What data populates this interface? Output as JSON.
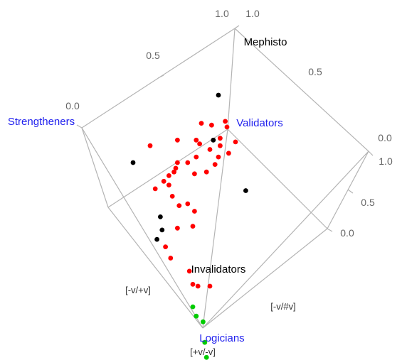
{
  "chart_data": {
    "type": "scatter",
    "ticks": {
      "top": [
        "0.0",
        "0.5",
        "1.0"
      ],
      "right": [
        "0.0",
        "0.5",
        "1.0"
      ],
      "inner_right": "0.0",
      "top_outer": "1.0"
    },
    "vertex_labels": {
      "left": "Strengtheners",
      "center": "Validators",
      "bottom": "Logicians",
      "upper": "Mephisto",
      "lower": "Invalidators"
    },
    "axis_signs": {
      "left": "[-v/+v]",
      "right": "[-v/#v]",
      "bottom": "[+v/-v]"
    },
    "colors": {
      "red": "#ff0000",
      "black": "#000000",
      "green": "#00cc00",
      "label_blue": "#2222ee",
      "frame": "#b4b4b4"
    },
    "points": [
      {
        "u": 0.8,
        "v": 0.11,
        "group": "black"
      },
      {
        "u": 0.84,
        "v": 0.25,
        "group": "red"
      },
      {
        "u": 0.85,
        "v": 0.28,
        "group": "red"
      },
      {
        "u": 0.76,
        "v": 0.27,
        "group": "red"
      },
      {
        "u": 0.7,
        "v": 0.26,
        "group": "red"
      },
      {
        "u": 0.67,
        "v": 0.35,
        "group": "red"
      },
      {
        "u": 0.81,
        "v": 0.34,
        "group": "red"
      },
      {
        "u": 0.77,
        "v": 0.35,
        "group": "black"
      },
      {
        "u": 0.81,
        "v": 0.38,
        "group": "red"
      },
      {
        "u": 0.9,
        "v": 0.36,
        "group": "red"
      },
      {
        "u": 0.56,
        "v": 0.35,
        "group": "red"
      },
      {
        "u": 0.69,
        "v": 0.37,
        "group": "red"
      },
      {
        "u": 0.75,
        "v": 0.4,
        "group": "red"
      },
      {
        "u": 0.67,
        "v": 0.44,
        "group": "red"
      },
      {
        "u": 0.8,
        "v": 0.44,
        "group": "red"
      },
      {
        "u": 0.78,
        "v": 0.48,
        "group": "red"
      },
      {
        "u": 0.86,
        "v": 0.42,
        "group": "red"
      },
      {
        "u": 0.4,
        "v": 0.38,
        "group": "red"
      },
      {
        "u": 0.66,
        "v": 0.53,
        "group": "red"
      },
      {
        "u": 0.73,
        "v": 0.52,
        "group": "red"
      },
      {
        "u": 0.62,
        "v": 0.47,
        "group": "red"
      },
      {
        "u": 0.56,
        "v": 0.47,
        "group": "red"
      },
      {
        "u": 0.55,
        "v": 0.5,
        "group": "red"
      },
      {
        "u": 0.54,
        "v": 0.52,
        "group": "red"
      },
      {
        "u": 0.51,
        "v": 0.54,
        "group": "red"
      },
      {
        "u": 0.48,
        "v": 0.57,
        "group": "red"
      },
      {
        "u": 0.43,
        "v": 0.61,
        "group": "red"
      },
      {
        "u": 0.3,
        "v": 0.47,
        "group": "black"
      },
      {
        "u": 0.96,
        "v": 0.62,
        "group": "black"
      },
      {
        "u": 0.51,
        "v": 0.59,
        "group": "red"
      },
      {
        "u": 0.53,
        "v": 0.65,
        "group": "red"
      },
      {
        "u": 0.62,
        "v": 0.69,
        "group": "red"
      },
      {
        "u": 0.66,
        "v": 0.73,
        "group": "red"
      },
      {
        "u": 0.57,
        "v": 0.7,
        "group": "red"
      },
      {
        "u": 0.65,
        "v": 0.81,
        "group": "red"
      },
      {
        "u": 0.56,
        "v": 0.82,
        "group": "red"
      },
      {
        "u": 0.46,
        "v": 0.76,
        "group": "black"
      },
      {
        "u": 0.47,
        "v": 0.83,
        "group": "black"
      },
      {
        "u": 0.49,
        "v": 0.92,
        "group": "red"
      },
      {
        "u": 0.44,
        "v": 0.88,
        "group": "black"
      },
      {
        "u": 0.52,
        "v": 0.98,
        "group": "red"
      },
      {
        "u": 0.63,
        "v": 1.05,
        "group": "red"
      },
      {
        "u": 0.65,
        "v": 1.12,
        "group": "red"
      },
      {
        "u": 0.68,
        "v": 1.13,
        "group": "red"
      },
      {
        "u": 0.75,
        "v": 1.13,
        "group": "red"
      },
      {
        "u": 0.65,
        "v": 1.24,
        "group": "green"
      },
      {
        "u": 0.67,
        "v": 1.29,
        "group": "green"
      },
      {
        "u": 0.71,
        "v": 1.32,
        "group": "green"
      },
      {
        "u": 0.72,
        "v": 1.43,
        "group": "green"
      },
      {
        "u": 0.73,
        "v": 1.51,
        "group": "green"
      }
    ]
  }
}
